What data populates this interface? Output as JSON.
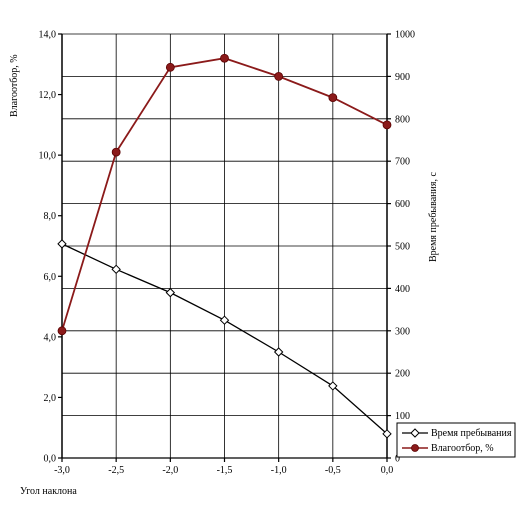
{
  "chart_data": {
    "type": "line",
    "x": [
      -3.0,
      -2.5,
      -2.0,
      -1.5,
      -1.0,
      -0.5,
      0.0
    ],
    "x_tick_labels": [
      "-3,0",
      "-2,5",
      "-2,0",
      "-1,5",
      "-1,0",
      "-0,5",
      "0,0"
    ],
    "xlabel": "Угол наклона",
    "xlim": [
      -3.0,
      0.0
    ],
    "y_left": {
      "label": "Влагоотбор, %",
      "lim": [
        0,
        14
      ],
      "ticks": [
        "0,0",
        "2,0",
        "4,0",
        "6,0",
        "8,0",
        "10,0",
        "12,0",
        "14,0"
      ]
    },
    "y_right": {
      "label": "Время пребывания, с",
      "lim": [
        0,
        1000
      ],
      "ticks": [
        "0",
        "100",
        "200",
        "300",
        "400",
        "500",
        "600",
        "700",
        "800",
        "900",
        "1000"
      ]
    },
    "series": [
      {
        "name": "Время пребывания",
        "axis": "right",
        "marker": "open-diamond",
        "color": "#000000",
        "values": [
          505,
          445,
          390,
          325,
          250,
          170,
          57
        ]
      },
      {
        "name": "Влагоотбор, %",
        "axis": "left",
        "marker": "filled-circle",
        "color": "#8b1a1a",
        "values": [
          4.2,
          10.1,
          12.9,
          13.2,
          12.6,
          11.9,
          11.0
        ]
      }
    ],
    "grid": true,
    "legend": "bottom-right"
  }
}
